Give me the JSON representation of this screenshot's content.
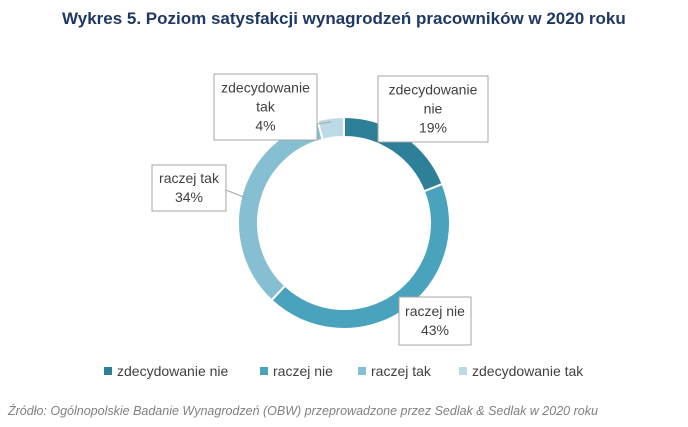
{
  "title": "Wykres 5. Poziom satysfakcji wynagrodzeń pracowników w 2020 roku",
  "source": "Źródło: Ogólnopolskie Badanie Wynagrodzeń (OBW) przeprowadzone przez Sedlak & Sedlak w 2020 roku",
  "chart_data": {
    "type": "pie",
    "variant": "donut",
    "categories": [
      "zdecydowanie nie",
      "raczej nie",
      "raczej tak",
      "zdecydowanie tak"
    ],
    "values": [
      19,
      43,
      34,
      4
    ],
    "unit": "%",
    "colors": [
      "#2e7f98",
      "#4aa3bc",
      "#86bfd1",
      "#bcd9e6"
    ],
    "data_labels": [
      [
        "zdecydowanie",
        "nie",
        "19%"
      ],
      [
        "raczej nie",
        "43%"
      ],
      [
        "raczej tak",
        "34%"
      ],
      [
        "zdecydowanie",
        "tak",
        "4%"
      ]
    ],
    "legend": {
      "position": "bottom",
      "entries": [
        "zdecydowanie nie",
        "raczej nie",
        "raczej tak",
        "zdecydowanie tak"
      ]
    }
  }
}
